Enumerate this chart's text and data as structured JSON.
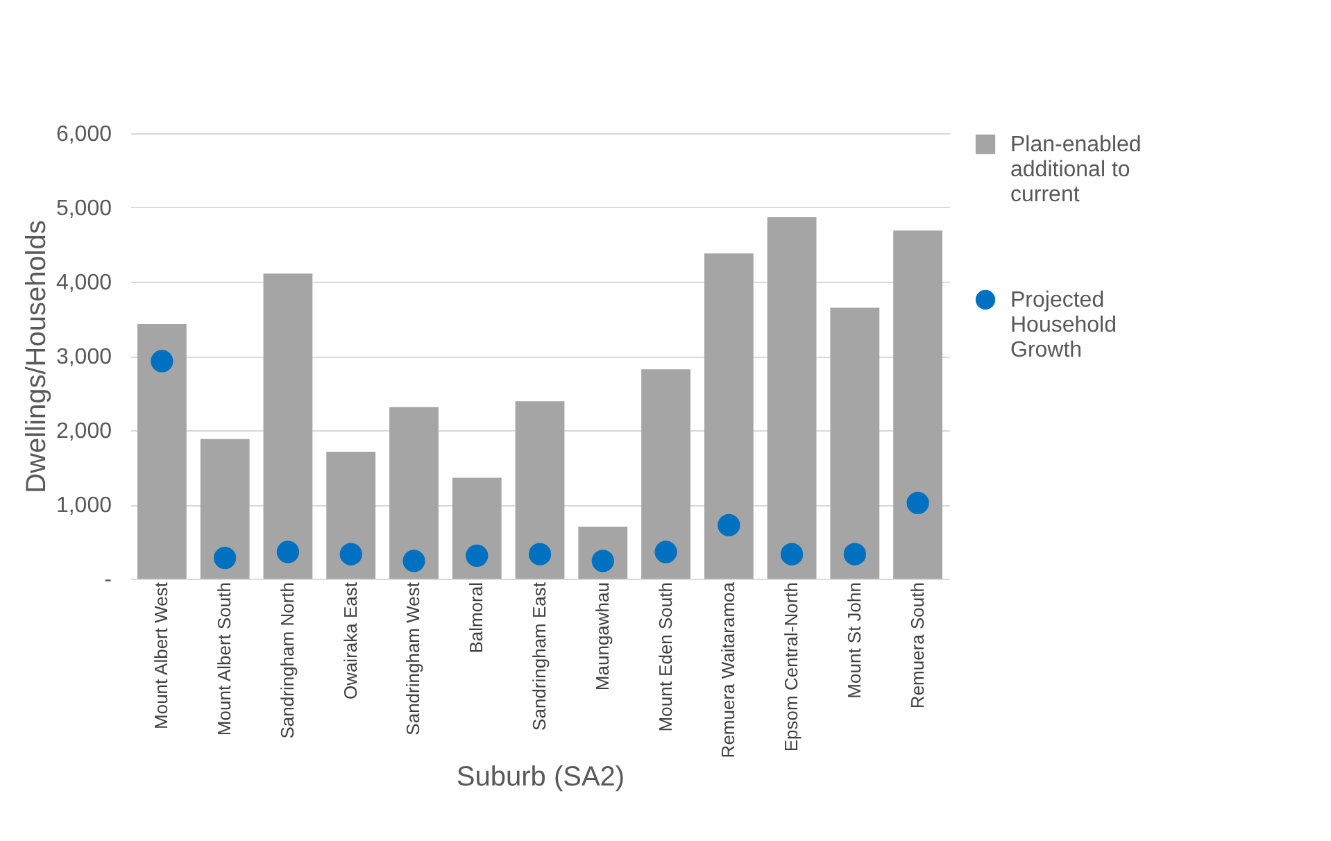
{
  "chart_data": {
    "type": "bar",
    "xlabel": "Suburb (SA2)",
    "ylabel": "Dwellings/Households",
    "categories": [
      "Mount Albert West",
      "Mount Albert South",
      "Sandringham North",
      "Owairaka East",
      "Sandringham West",
      "Balmoral",
      "Sandringham East",
      "Maungawhau",
      "Mount Eden South",
      "Remuera Waitaramoa",
      "Epsom Central-North",
      "Mount St John",
      "Remuera South"
    ],
    "series": [
      {
        "name": "Plan-enabled additional to current",
        "type": "bar",
        "color": "#a5a5a5",
        "values": [
          3430,
          1880,
          4110,
          1710,
          2310,
          1360,
          2390,
          700,
          2820,
          4380,
          4870,
          3650,
          4690
        ]
      },
      {
        "name": "Projected Household Growth",
        "type": "scatter",
        "color": "#0070c0",
        "values": [
          2930,
          280,
          360,
          330,
          240,
          310,
          330,
          240,
          360,
          720,
          330,
          330,
          1020
        ]
      }
    ],
    "ylim": [
      0,
      6000
    ],
    "yticks": [
      {
        "value": 0,
        "label": "-"
      },
      {
        "value": 1000,
        "label": "1,000"
      },
      {
        "value": 2000,
        "label": "2,000"
      },
      {
        "value": 3000,
        "label": "3,000"
      },
      {
        "value": 4000,
        "label": "4,000"
      },
      {
        "value": 5000,
        "label": "5,000"
      },
      {
        "value": 6000,
        "label": "6,000"
      }
    ],
    "grid": "y",
    "legend": "right",
    "marker": "circle"
  }
}
